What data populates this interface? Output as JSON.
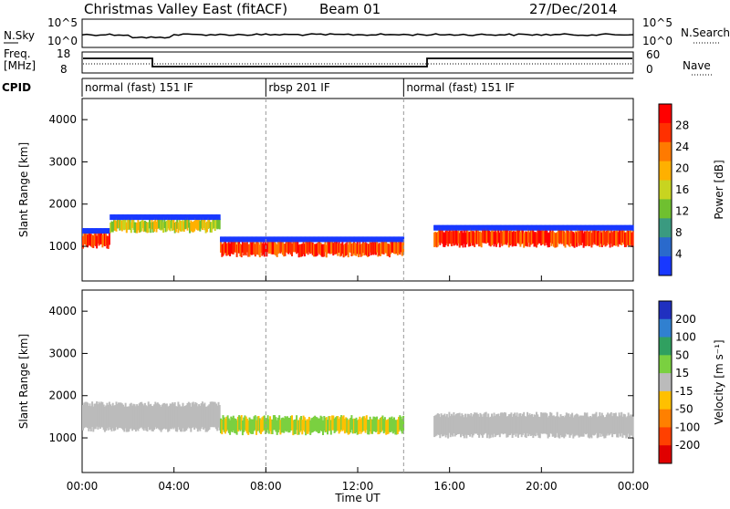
{
  "header": {
    "station": "Christmas Valley East (fitACF)",
    "beam": "Beam 01",
    "date": "27/Dec/2014"
  },
  "top_panels": {
    "nsky_label": "N.Sky",
    "nsky_ticks": [
      "10^5",
      "10^0"
    ],
    "nsearch_label": "N.Search",
    "nsearch_ticks": [
      "10^5",
      "10^0"
    ],
    "freq_label_1": "Freq.",
    "freq_label_2": "[MHz]",
    "freq_ticks": [
      "18",
      "8"
    ],
    "nave_label": "Nave",
    "nave_ticks": [
      "60",
      "0"
    ],
    "cpid_label": "CPID",
    "cpid_segments": [
      {
        "start_hr": 0,
        "end_hr": 8,
        "label": "normal (fast) 151 IF"
      },
      {
        "start_hr": 8,
        "end_hr": 14,
        "label": "rbsp 201 IF"
      },
      {
        "start_hr": 14,
        "end_hr": 24,
        "label": "normal (fast) 151 IF"
      }
    ]
  },
  "xaxis": {
    "label": "Time UT",
    "ticks": [
      "00:00",
      "04:00",
      "08:00",
      "12:00",
      "16:00",
      "20:00",
      "00:00"
    ]
  },
  "chart_data": [
    {
      "type": "heatmap",
      "parameter": "Power",
      "ylabel": "Slant Range [km]",
      "yticks": [
        1000,
        2000,
        3000,
        4000
      ],
      "ylim": [
        180,
        4500
      ],
      "xlim_hours": [
        0,
        24
      ],
      "colorbar": {
        "label": "Power [dB]",
        "ticks": [
          "4",
          "8",
          "12",
          "16",
          "20",
          "24",
          "28"
        ],
        "colors": [
          "#1838ff",
          "#2a6acc",
          "#3a9a80",
          "#6fc030",
          "#c8d420",
          "#ffb000",
          "#ff7a00",
          "#ff3000",
          "#ff0000"
        ]
      },
      "features": [
        {
          "t_start": 0.0,
          "t_end": 1.2,
          "range_center": 1150,
          "width": 300,
          "level": "high"
        },
        {
          "t_start": 1.2,
          "t_end": 6.0,
          "range_center": 1500,
          "width": 250,
          "level": "mid"
        },
        {
          "t_start": 6.0,
          "t_end": 14.0,
          "range_center": 950,
          "width": 300,
          "level": "high"
        },
        {
          "t_start": 15.3,
          "t_end": 24.0,
          "range_center": 1200,
          "width": 350,
          "level": "high"
        }
      ]
    },
    {
      "type": "heatmap",
      "parameter": "Velocity",
      "ylabel": "Slant Range [km]",
      "yticks": [
        1000,
        2000,
        3000,
        4000
      ],
      "ylim": [
        180,
        4500
      ],
      "xlim_hours": [
        0,
        24
      ],
      "colorbar": {
        "label": "Velocity [m s⁻¹]",
        "ticks": [
          "200",
          "100",
          "50",
          "15",
          "-15",
          "-50",
          "-100",
          "-200"
        ],
        "colors": [
          "#2030c0",
          "#3080d0",
          "#30a060",
          "#7ad040",
          "#bbbbbb",
          "#ffc000",
          "#ff8000",
          "#ff4000",
          "#e00000"
        ]
      },
      "features": [
        {
          "t_start": 0.0,
          "t_end": 6.0,
          "range_center": 1500,
          "width": 600,
          "level": "ground"
        },
        {
          "t_start": 6.0,
          "t_end": 14.0,
          "range_center": 1300,
          "width": 350,
          "level": "positive"
        },
        {
          "t_start": 15.3,
          "t_end": 24.0,
          "range_center": 1300,
          "width": 500,
          "level": "ground"
        }
      ]
    }
  ]
}
